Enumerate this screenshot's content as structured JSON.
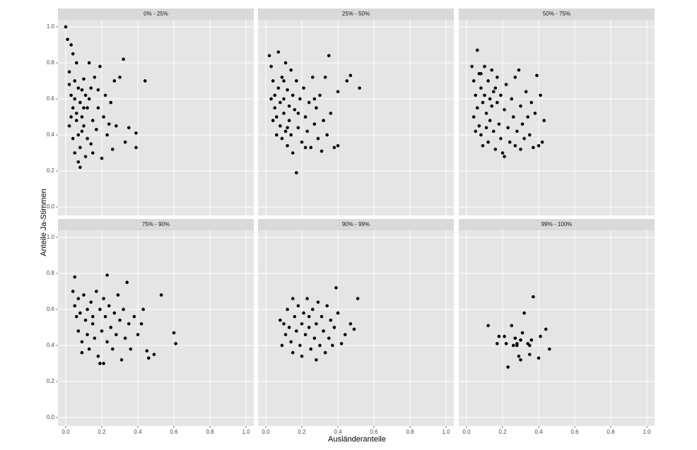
{
  "chart_data": {
    "type": "scatter",
    "x_label": "Ausländeranteile",
    "y_label": "Anteile Ja-Stimmen",
    "xlim": [
      -0.043,
      1.043
    ],
    "ylim": [
      -0.047,
      1.039
    ],
    "xticks": [
      {
        "value": 0,
        "label": "0.0"
      },
      0.2,
      0.4,
      0.6,
      0.8,
      {
        "value": 1,
        "label": "1.0"
      }
    ],
    "yticks": [
      {
        "value": 0,
        "label": "0.0"
      },
      0.2,
      0.4,
      0.6,
      0.8,
      {
        "value": 1,
        "label": "1.0"
      }
    ],
    "grid": true,
    "color": "#000000",
    "facets": [
      {
        "title": "0% - 25%",
        "x": [
          0.0,
          0.01,
          0.03,
          0.02,
          0.03,
          0.04,
          0.02,
          0.05,
          0.06,
          0.04,
          0.05,
          0.07,
          0.08,
          0.06,
          0.09,
          0.08,
          0.08,
          0.1,
          0.11,
          0.09,
          0.1,
          0.12,
          0.11,
          0.13,
          0.12,
          0.14,
          0.15,
          0.14,
          0.13,
          0.16,
          0.17,
          0.18,
          0.19,
          0.2,
          0.21,
          0.22,
          0.23,
          0.25,
          0.26,
          0.27,
          0.28,
          0.3,
          0.32,
          0.33,
          0.35,
          0.39,
          0.39,
          0.44,
          0.02,
          0.03,
          0.05,
          0.07,
          0.06,
          0.09,
          0.07,
          0.1,
          0.04,
          0.15,
          0.18,
          0.24
        ],
        "y": [
          1.0,
          0.93,
          0.9,
          0.75,
          0.62,
          0.55,
          0.45,
          0.7,
          0.48,
          0.38,
          0.3,
          0.66,
          0.58,
          0.52,
          0.42,
          0.33,
          0.22,
          0.71,
          0.62,
          0.5,
          0.45,
          0.38,
          0.28,
          0.8,
          0.55,
          0.66,
          0.48,
          0.35,
          0.6,
          0.72,
          0.43,
          0.55,
          0.78,
          0.27,
          0.5,
          0.62,
          0.4,
          0.58,
          0.32,
          0.7,
          0.45,
          0.72,
          0.82,
          0.36,
          0.44,
          0.41,
          0.33,
          0.7,
          0.68,
          0.5,
          0.6,
          0.4,
          0.8,
          0.65,
          0.25,
          0.55,
          0.85,
          0.3,
          0.65,
          0.46
        ]
      },
      {
        "title": "25% - 50%",
        "x": [
          0.02,
          0.03,
          0.04,
          0.05,
          0.05,
          0.06,
          0.07,
          0.07,
          0.08,
          0.08,
          0.09,
          0.09,
          0.1,
          0.1,
          0.11,
          0.11,
          0.12,
          0.12,
          0.13,
          0.13,
          0.14,
          0.14,
          0.15,
          0.15,
          0.16,
          0.17,
          0.17,
          0.18,
          0.19,
          0.2,
          0.21,
          0.22,
          0.23,
          0.24,
          0.25,
          0.26,
          0.27,
          0.28,
          0.29,
          0.3,
          0.31,
          0.32,
          0.33,
          0.34,
          0.35,
          0.36,
          0.38,
          0.4,
          0.4,
          0.45,
          0.47,
          0.52,
          0.04,
          0.06,
          0.03,
          0.1,
          0.18,
          0.22,
          0.27,
          0.12
        ],
        "y": [
          0.84,
          0.78,
          0.7,
          0.62,
          0.55,
          0.5,
          0.86,
          0.66,
          0.58,
          0.45,
          0.72,
          0.38,
          0.6,
          0.52,
          0.8,
          0.42,
          0.65,
          0.34,
          0.56,
          0.48,
          0.76,
          0.4,
          0.62,
          0.3,
          0.54,
          0.19,
          0.7,
          0.44,
          0.6,
          0.36,
          0.66,
          0.5,
          0.42,
          0.58,
          0.33,
          0.72,
          0.46,
          0.55,
          0.38,
          0.62,
          0.31,
          0.48,
          0.72,
          0.4,
          0.84,
          0.52,
          0.33,
          0.64,
          0.34,
          0.7,
          0.73,
          0.66,
          0.48,
          0.4,
          0.6,
          0.7,
          0.52,
          0.33,
          0.6,
          0.44
        ]
      },
      {
        "title": "50% - 75%",
        "x": [
          0.03,
          0.04,
          0.04,
          0.05,
          0.06,
          0.06,
          0.07,
          0.07,
          0.08,
          0.08,
          0.09,
          0.09,
          0.1,
          0.1,
          0.11,
          0.11,
          0.12,
          0.12,
          0.13,
          0.13,
          0.14,
          0.14,
          0.15,
          0.15,
          0.16,
          0.17,
          0.17,
          0.18,
          0.19,
          0.19,
          0.2,
          0.21,
          0.21,
          0.22,
          0.23,
          0.24,
          0.25,
          0.26,
          0.27,
          0.27,
          0.28,
          0.29,
          0.3,
          0.3,
          0.31,
          0.32,
          0.33,
          0.34,
          0.35,
          0.36,
          0.37,
          0.38,
          0.39,
          0.4,
          0.41,
          0.42,
          0.43,
          0.05,
          0.08,
          0.16
        ],
        "y": [
          0.78,
          0.7,
          0.5,
          0.62,
          0.87,
          0.55,
          0.45,
          0.74,
          0.66,
          0.4,
          0.58,
          0.34,
          0.78,
          0.62,
          0.52,
          0.44,
          0.7,
          0.36,
          0.6,
          0.48,
          0.76,
          0.56,
          0.42,
          0.64,
          0.32,
          0.58,
          0.72,
          0.46,
          0.38,
          0.62,
          0.3,
          0.54,
          0.28,
          0.68,
          0.44,
          0.36,
          0.6,
          0.5,
          0.72,
          0.34,
          0.42,
          0.76,
          0.56,
          0.32,
          0.46,
          0.38,
          0.64,
          0.5,
          0.4,
          0.58,
          0.33,
          0.52,
          0.73,
          0.34,
          0.62,
          0.36,
          0.48,
          0.42,
          0.74,
          0.66
        ]
      },
      {
        "title": "75% - 90%",
        "x": [
          0.04,
          0.05,
          0.05,
          0.06,
          0.07,
          0.07,
          0.08,
          0.09,
          0.09,
          0.1,
          0.11,
          0.12,
          0.12,
          0.13,
          0.14,
          0.15,
          0.15,
          0.16,
          0.17,
          0.18,
          0.19,
          0.19,
          0.2,
          0.21,
          0.21,
          0.22,
          0.23,
          0.23,
          0.24,
          0.25,
          0.26,
          0.27,
          0.28,
          0.29,
          0.3,
          0.31,
          0.32,
          0.33,
          0.34,
          0.35,
          0.36,
          0.38,
          0.4,
          0.42,
          0.43,
          0.45,
          0.46,
          0.49,
          0.53,
          0.6,
          0.61
        ],
        "y": [
          0.7,
          0.78,
          0.62,
          0.56,
          0.66,
          0.48,
          0.58,
          0.42,
          0.36,
          0.68,
          0.54,
          0.6,
          0.46,
          0.38,
          0.64,
          0.52,
          0.56,
          0.44,
          0.7,
          0.34,
          0.3,
          0.6,
          0.48,
          0.3,
          0.66,
          0.56,
          0.79,
          0.42,
          0.62,
          0.5,
          0.38,
          0.58,
          0.46,
          0.68,
          0.54,
          0.32,
          0.6,
          0.44,
          0.75,
          0.52,
          0.38,
          0.56,
          0.46,
          0.52,
          0.6,
          0.37,
          0.33,
          0.35,
          0.68,
          0.47,
          0.41
        ]
      },
      {
        "title": "90% - 99%",
        "x": [
          0.08,
          0.09,
          0.1,
          0.11,
          0.12,
          0.13,
          0.14,
          0.15,
          0.15,
          0.16,
          0.17,
          0.18,
          0.19,
          0.2,
          0.2,
          0.21,
          0.22,
          0.23,
          0.24,
          0.24,
          0.25,
          0.26,
          0.27,
          0.28,
          0.28,
          0.29,
          0.3,
          0.31,
          0.32,
          0.33,
          0.34,
          0.35,
          0.36,
          0.37,
          0.38,
          0.39,
          0.4,
          0.42,
          0.44,
          0.47,
          0.49,
          0.51
        ],
        "y": [
          0.54,
          0.4,
          0.52,
          0.46,
          0.6,
          0.5,
          0.42,
          0.66,
          0.36,
          0.56,
          0.48,
          0.62,
          0.4,
          0.52,
          0.34,
          0.58,
          0.46,
          0.66,
          0.5,
          0.56,
          0.38,
          0.6,
          0.44,
          0.32,
          0.52,
          0.64,
          0.4,
          0.56,
          0.48,
          0.36,
          0.62,
          0.44,
          0.54,
          0.4,
          0.5,
          0.72,
          0.58,
          0.41,
          0.46,
          0.52,
          0.49,
          0.66
        ]
      },
      {
        "title": "99% - 100%",
        "x": [
          0.12,
          0.17,
          0.18,
          0.21,
          0.22,
          0.23,
          0.25,
          0.26,
          0.27,
          0.28,
          0.29,
          0.3,
          0.3,
          0.31,
          0.32,
          0.35,
          0.35,
          0.36,
          0.37,
          0.4,
          0.41,
          0.44,
          0.46,
          0.28,
          0.34
        ],
        "y": [
          0.51,
          0.41,
          0.45,
          0.45,
          0.41,
          0.28,
          0.51,
          0.4,
          0.44,
          0.41,
          0.34,
          0.43,
          0.32,
          0.47,
          0.58,
          0.35,
          0.4,
          0.43,
          0.67,
          0.33,
          0.45,
          0.49,
          0.38,
          0.4,
          0.41
        ]
      }
    ]
  }
}
